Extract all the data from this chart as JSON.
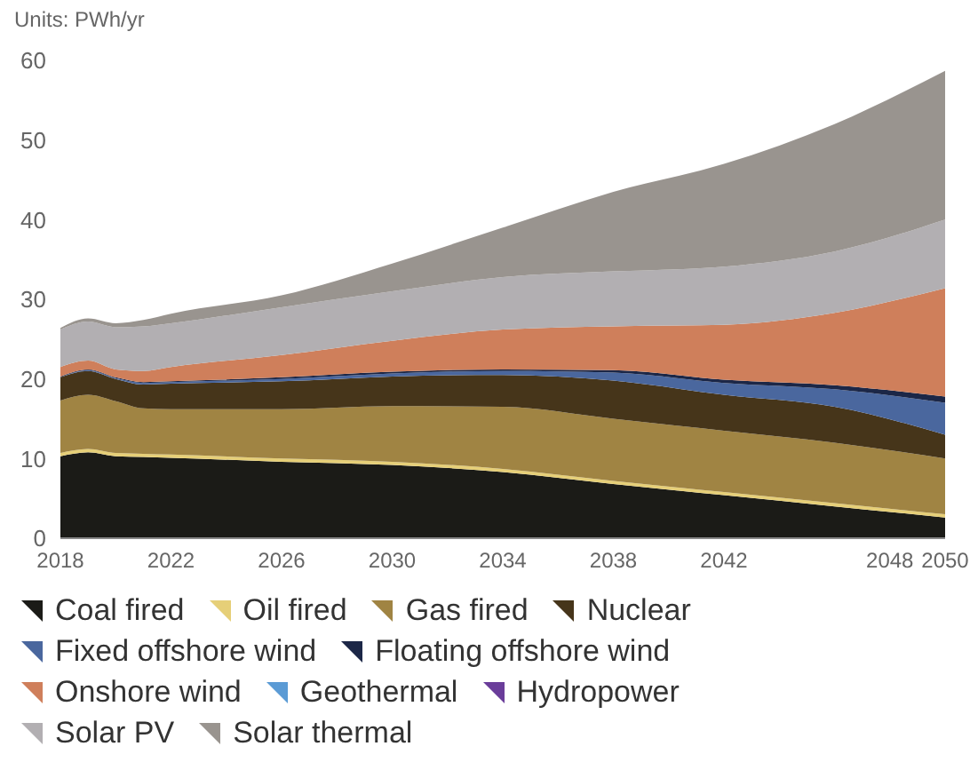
{
  "chart_data": {
    "type": "area",
    "stacked": true,
    "ylabel": "Units: PWh/yr",
    "x": [
      2018,
      2019,
      2020,
      2021,
      2022,
      2026,
      2030,
      2034,
      2038,
      2042,
      2046,
      2050
    ],
    "series": [
      {
        "name": "Coal fired",
        "color": "#1b1b17",
        "values": [
          10.3,
          10.8,
          10.3,
          10.2,
          10.1,
          9.6,
          9.2,
          8.3,
          6.8,
          5.4,
          4.0,
          2.6
        ]
      },
      {
        "name": "Oil fired",
        "color": "#e6cf78",
        "values": [
          0.4,
          0.4,
          0.4,
          0.4,
          0.4,
          0.4,
          0.4,
          0.4,
          0.4,
          0.4,
          0.4,
          0.4
        ]
      },
      {
        "name": "Gas fired",
        "color": "#a08443",
        "values": [
          6.6,
          6.8,
          6.5,
          5.7,
          5.7,
          6.2,
          7.0,
          7.8,
          7.8,
          7.7,
          7.6,
          7.0
        ]
      },
      {
        "name": "Nuclear",
        "color": "#46351a",
        "values": [
          2.9,
          3.0,
          2.8,
          3.0,
          3.2,
          3.5,
          3.7,
          4.0,
          4.8,
          4.5,
          4.5,
          3.0
        ]
      },
      {
        "name": "Fixed offshore wind",
        "color": "#4a679e",
        "values": [
          0.0,
          0.1,
          0.1,
          0.2,
          0.2,
          0.3,
          0.4,
          0.5,
          1.0,
          1.5,
          2.2,
          4.0
        ]
      },
      {
        "name": "Floating offshore wind",
        "color": "#1c2747",
        "values": [
          0.1,
          0.1,
          0.1,
          0.1,
          0.1,
          0.2,
          0.2,
          0.2,
          0.3,
          0.4,
          0.5,
          0.8
        ]
      },
      {
        "name": "Onshore wind",
        "color": "#cf7f5b",
        "values": [
          1.2,
          1.1,
          1.0,
          1.4,
          1.8,
          2.8,
          3.9,
          5.0,
          5.5,
          6.9,
          9.1,
          13.6
        ]
      },
      {
        "name": "Geothermal",
        "color": "#5b9bd5",
        "values": [
          null,
          null,
          null,
          null,
          null,
          null,
          null,
          null,
          null,
          null,
          null,
          null
        ]
      },
      {
        "name": "Hydropower",
        "color": "#6a3d9a",
        "values": [
          null,
          null,
          null,
          null,
          null,
          null,
          null,
          null,
          null,
          null,
          null,
          null
        ]
      },
      {
        "name": "Solar PV",
        "color": "#b2afb2",
        "values": [
          4.7,
          4.9,
          5.3,
          5.6,
          5.5,
          6.0,
          6.2,
          6.6,
          6.9,
          7.3,
          7.7,
          8.6
        ]
      },
      {
        "name": "Solar thermal",
        "color": "#99948f",
        "values": [
          0.2,
          0.4,
          0.5,
          0.8,
          1.2,
          1.5,
          3.5,
          6.2,
          10.0,
          12.9,
          16.0,
          18.7
        ]
      }
    ],
    "xlim": [
      2018,
      2050
    ],
    "xticks": [
      2018,
      2022,
      2026,
      2030,
      2034,
      2038,
      2042,
      2048,
      2050
    ],
    "ylim": [
      0,
      60
    ],
    "yticks": [
      0,
      10,
      20,
      30,
      40,
      50,
      60
    ],
    "legend": "bottom"
  }
}
